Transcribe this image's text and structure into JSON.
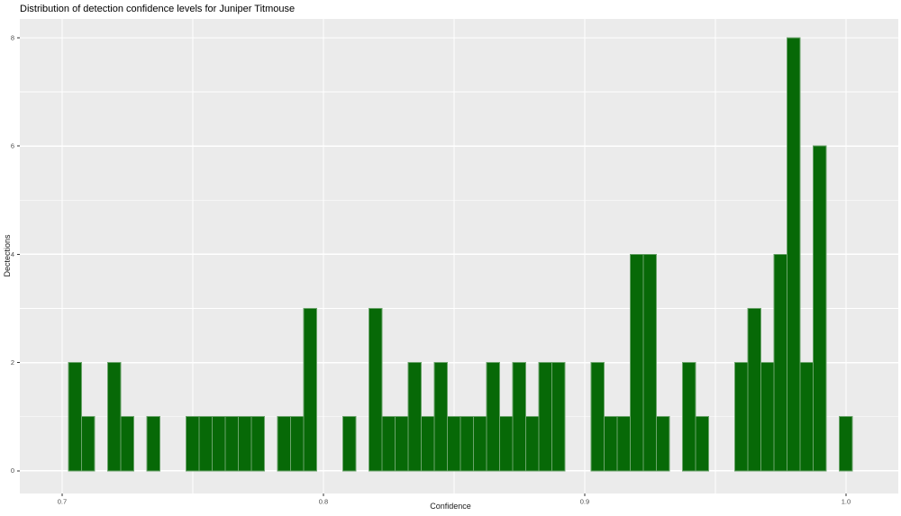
{
  "title": "Distribution of detection confidence levels for Juniper Titmouse",
  "chart_data": {
    "type": "bar",
    "subtype": "histogram",
    "title": "Distribution of detection confidence levels for Juniper Titmouse",
    "xlabel": "Confidence",
    "ylabel": "Dectections",
    "legend": "none",
    "grid": true,
    "bin_width": 0.005,
    "xlim": [
      0.6838,
      1.02
    ],
    "ylim": [
      -0.42,
      8.35
    ],
    "x_ticks": [
      0.7,
      0.8,
      0.9,
      1.0
    ],
    "x_tick_labels": [
      "0.7",
      "0.8",
      "0.9",
      "1.0"
    ],
    "x_minor_gridlines": [
      0.75,
      0.85,
      0.95
    ],
    "y_ticks": [
      0,
      2,
      4,
      6,
      8
    ],
    "y_tick_labels": [
      "0",
      "2",
      "4",
      "6",
      "8"
    ],
    "y_minor_gridlines": [
      1,
      3,
      5,
      7
    ],
    "bars": [
      {
        "x": 0.705,
        "count": 2
      },
      {
        "x": 0.71,
        "count": 1
      },
      {
        "x": 0.72,
        "count": 2
      },
      {
        "x": 0.725,
        "count": 1
      },
      {
        "x": 0.735,
        "count": 1
      },
      {
        "x": 0.75,
        "count": 1
      },
      {
        "x": 0.755,
        "count": 1
      },
      {
        "x": 0.76,
        "count": 1
      },
      {
        "x": 0.765,
        "count": 1
      },
      {
        "x": 0.77,
        "count": 1
      },
      {
        "x": 0.775,
        "count": 1
      },
      {
        "x": 0.785,
        "count": 1
      },
      {
        "x": 0.79,
        "count": 1
      },
      {
        "x": 0.795,
        "count": 3
      },
      {
        "x": 0.81,
        "count": 1
      },
      {
        "x": 0.82,
        "count": 3
      },
      {
        "x": 0.825,
        "count": 1
      },
      {
        "x": 0.83,
        "count": 1
      },
      {
        "x": 0.835,
        "count": 2
      },
      {
        "x": 0.84,
        "count": 1
      },
      {
        "x": 0.845,
        "count": 2
      },
      {
        "x": 0.85,
        "count": 1
      },
      {
        "x": 0.855,
        "count": 1
      },
      {
        "x": 0.86,
        "count": 1
      },
      {
        "x": 0.865,
        "count": 2
      },
      {
        "x": 0.87,
        "count": 1
      },
      {
        "x": 0.875,
        "count": 2
      },
      {
        "x": 0.88,
        "count": 1
      },
      {
        "x": 0.885,
        "count": 2
      },
      {
        "x": 0.89,
        "count": 2
      },
      {
        "x": 0.905,
        "count": 2
      },
      {
        "x": 0.91,
        "count": 1
      },
      {
        "x": 0.915,
        "count": 1
      },
      {
        "x": 0.92,
        "count": 4
      },
      {
        "x": 0.925,
        "count": 4
      },
      {
        "x": 0.93,
        "count": 1
      },
      {
        "x": 0.94,
        "count": 2
      },
      {
        "x": 0.945,
        "count": 1
      },
      {
        "x": 0.96,
        "count": 2
      },
      {
        "x": 0.965,
        "count": 3
      },
      {
        "x": 0.97,
        "count": 2
      },
      {
        "x": 0.975,
        "count": 4
      },
      {
        "x": 0.98,
        "count": 8
      },
      {
        "x": 0.985,
        "count": 2
      },
      {
        "x": 0.99,
        "count": 6
      },
      {
        "x": 1.0,
        "count": 1
      }
    ],
    "colors": {
      "bar_fill": "#076907",
      "bar_edge": "#6ba46b",
      "panel_background": "#ebebeb",
      "gridline": "#ffffff",
      "tick_mark": "#333333",
      "tick_label": "#4d4d4d",
      "axis_title": "#1a1a1a",
      "title": "#000000",
      "background": "#ffffff"
    }
  }
}
